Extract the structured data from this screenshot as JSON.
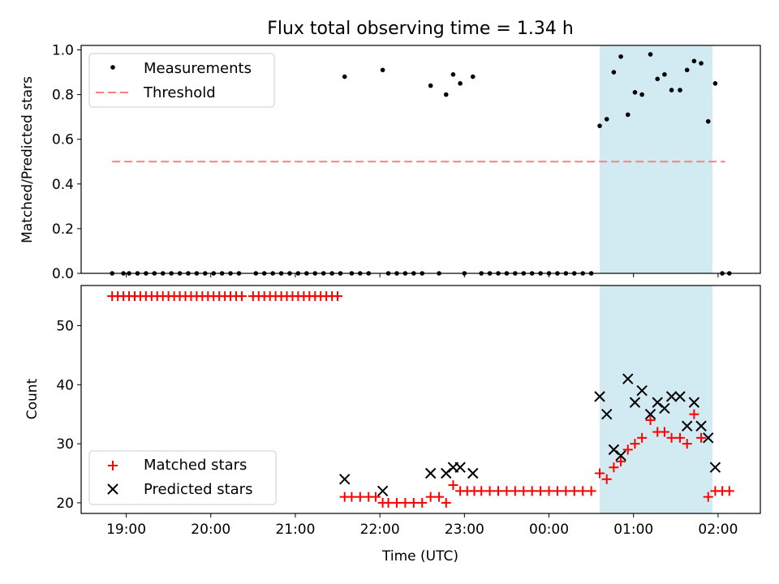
{
  "chart_data": {
    "title": "Flux total observing time = 1.34 h",
    "xlabel": "Time (UTC)",
    "x_ticks": [
      "19:00",
      "20:00",
      "21:00",
      "22:00",
      "23:00",
      "00:00",
      "01:00",
      "02:00"
    ],
    "highlight_span": {
      "start": "00:36",
      "end": "01:56",
      "color": "#add8e6"
    },
    "colors": {
      "measurements": "#000000",
      "threshold": "#ff7f7f",
      "matched": "#ff0000",
      "predicted": "#000000",
      "span": "#add8e6"
    },
    "panels": [
      {
        "type": "scatter",
        "ylabel": "Matched/Predicted stars",
        "ylim": [
          0,
          1.02
        ],
        "y_ticks": [
          0.0,
          0.2,
          0.4,
          0.6,
          0.8,
          1.0
        ],
        "legend": {
          "position": "top-left",
          "entries": [
            "Measurements",
            "Threshold"
          ]
        },
        "threshold": {
          "name": "Threshold",
          "value": 0.5,
          "x_start": "18:50",
          "x_end": "02:05"
        },
        "series": [
          {
            "name": "Measurements",
            "points": [
              [
                "18:50",
                0.0
              ],
              [
                "18:58",
                0.0
              ],
              [
                "19:02",
                0.0
              ],
              [
                "19:08",
                0.0
              ],
              [
                "19:14",
                0.0
              ],
              [
                "19:20",
                0.0
              ],
              [
                "19:26",
                0.0
              ],
              [
                "19:32",
                0.0
              ],
              [
                "19:38",
                0.0
              ],
              [
                "19:44",
                0.0
              ],
              [
                "19:50",
                0.0
              ],
              [
                "19:56",
                0.0
              ],
              [
                "20:02",
                0.0
              ],
              [
                "20:08",
                0.0
              ],
              [
                "20:14",
                0.0
              ],
              [
                "20:20",
                0.0
              ],
              [
                "20:32",
                0.0
              ],
              [
                "20:38",
                0.0
              ],
              [
                "20:44",
                0.0
              ],
              [
                "20:50",
                0.0
              ],
              [
                "20:56",
                0.0
              ],
              [
                "21:02",
                0.0
              ],
              [
                "21:08",
                0.0
              ],
              [
                "21:14",
                0.0
              ],
              [
                "21:20",
                0.0
              ],
              [
                "21:26",
                0.0
              ],
              [
                "21:32",
                0.0
              ],
              [
                "21:35",
                0.88
              ],
              [
                "21:40",
                0.0
              ],
              [
                "21:46",
                0.0
              ],
              [
                "21:52",
                0.0
              ],
              [
                "22:02",
                0.91
              ],
              [
                "22:06",
                0.0
              ],
              [
                "22:12",
                0.0
              ],
              [
                "22:18",
                0.0
              ],
              [
                "22:24",
                0.0
              ],
              [
                "22:30",
                0.0
              ],
              [
                "22:36",
                0.84
              ],
              [
                "22:42",
                0.0
              ],
              [
                "22:47",
                0.8
              ],
              [
                "22:52",
                0.89
              ],
              [
                "22:57",
                0.85
              ],
              [
                "23:00",
                0.0
              ],
              [
                "23:06",
                0.88
              ],
              [
                "23:12",
                0.0
              ],
              [
                "23:18",
                0.0
              ],
              [
                "23:24",
                0.0
              ],
              [
                "23:30",
                0.0
              ],
              [
                "23:36",
                0.0
              ],
              [
                "23:42",
                0.0
              ],
              [
                "23:48",
                0.0
              ],
              [
                "23:54",
                0.0
              ],
              [
                "00:00",
                0.0
              ],
              [
                "00:06",
                0.0
              ],
              [
                "00:12",
                0.0
              ],
              [
                "00:18",
                0.0
              ],
              [
                "00:24",
                0.0
              ],
              [
                "00:30",
                0.0
              ],
              [
                "00:36",
                0.66
              ],
              [
                "00:41",
                0.69
              ],
              [
                "00:46",
                0.9
              ],
              [
                "00:51",
                0.97
              ],
              [
                "00:56",
                0.71
              ],
              [
                "01:01",
                0.81
              ],
              [
                "01:06",
                0.8
              ],
              [
                "01:12",
                0.98
              ],
              [
                "01:17",
                0.87
              ],
              [
                "01:22",
                0.89
              ],
              [
                "01:27",
                0.82
              ],
              [
                "01:33",
                0.82
              ],
              [
                "01:38",
                0.91
              ],
              [
                "01:43",
                0.95
              ],
              [
                "01:48",
                0.94
              ],
              [
                "01:53",
                0.68
              ],
              [
                "01:58",
                0.85
              ],
              [
                "02:03",
                0.0
              ],
              [
                "02:08",
                0.0
              ]
            ]
          }
        ]
      },
      {
        "type": "scatter",
        "ylabel": "Count",
        "ylim": [
          18.2,
          56.8
        ],
        "y_ticks": [
          20,
          30,
          40,
          50
        ],
        "legend": {
          "position": "bottom-left",
          "entries": [
            "Matched stars",
            "Predicted stars"
          ]
        },
        "series": [
          {
            "name": "Matched stars",
            "marker": "+",
            "points": [
              [
                "18:50",
                55
              ],
              [
                "18:54",
                55
              ],
              [
                "18:58",
                55
              ],
              [
                "19:02",
                55
              ],
              [
                "19:06",
                55
              ],
              [
                "19:10",
                55
              ],
              [
                "19:14",
                55
              ],
              [
                "19:18",
                55
              ],
              [
                "19:22",
                55
              ],
              [
                "19:26",
                55
              ],
              [
                "19:30",
                55
              ],
              [
                "19:34",
                55
              ],
              [
                "19:38",
                55
              ],
              [
                "19:42",
                55
              ],
              [
                "19:46",
                55
              ],
              [
                "19:50",
                55
              ],
              [
                "19:54",
                55
              ],
              [
                "19:58",
                55
              ],
              [
                "20:02",
                55
              ],
              [
                "20:06",
                55
              ],
              [
                "20:10",
                55
              ],
              [
                "20:14",
                55
              ],
              [
                "20:18",
                55
              ],
              [
                "20:22",
                55
              ],
              [
                "20:30",
                55
              ],
              [
                "20:34",
                55
              ],
              [
                "20:38",
                55
              ],
              [
                "20:42",
                55
              ],
              [
                "20:46",
                55
              ],
              [
                "20:50",
                55
              ],
              [
                "20:54",
                55
              ],
              [
                "20:58",
                55
              ],
              [
                "21:02",
                55
              ],
              [
                "21:06",
                55
              ],
              [
                "21:10",
                55
              ],
              [
                "21:14",
                55
              ],
              [
                "21:18",
                55
              ],
              [
                "21:22",
                55
              ],
              [
                "21:26",
                55
              ],
              [
                "21:30",
                55
              ],
              [
                "21:35",
                21
              ],
              [
                "21:40",
                21
              ],
              [
                "21:46",
                21
              ],
              [
                "21:52",
                21
              ],
              [
                "21:57",
                21
              ],
              [
                "22:02",
                20
              ],
              [
                "22:06",
                20
              ],
              [
                "22:12",
                20
              ],
              [
                "22:18",
                20
              ],
              [
                "22:24",
                20
              ],
              [
                "22:30",
                20
              ],
              [
                "22:36",
                21
              ],
              [
                "22:42",
                21
              ],
              [
                "22:47",
                20
              ],
              [
                "22:52",
                23
              ],
              [
                "22:57",
                22
              ],
              [
                "23:02",
                22
              ],
              [
                "23:07",
                22
              ],
              [
                "23:12",
                22
              ],
              [
                "23:18",
                22
              ],
              [
                "23:24",
                22
              ],
              [
                "23:30",
                22
              ],
              [
                "23:36",
                22
              ],
              [
                "23:42",
                22
              ],
              [
                "23:48",
                22
              ],
              [
                "23:54",
                22
              ],
              [
                "00:00",
                22
              ],
              [
                "00:06",
                22
              ],
              [
                "00:12",
                22
              ],
              [
                "00:18",
                22
              ],
              [
                "00:24",
                22
              ],
              [
                "00:30",
                22
              ],
              [
                "00:36",
                25
              ],
              [
                "00:41",
                24
              ],
              [
                "00:46",
                26
              ],
              [
                "00:51",
                27
              ],
              [
                "00:56",
                29
              ],
              [
                "01:01",
                30
              ],
              [
                "01:06",
                31
              ],
              [
                "01:12",
                34
              ],
              [
                "01:17",
                32
              ],
              [
                "01:22",
                32
              ],
              [
                "01:27",
                31
              ],
              [
                "01:33",
                31
              ],
              [
                "01:38",
                30
              ],
              [
                "01:43",
                35
              ],
              [
                "01:48",
                31
              ],
              [
                "01:53",
                21
              ],
              [
                "01:58",
                22
              ],
              [
                "02:03",
                22
              ],
              [
                "02:08",
                22
              ]
            ]
          },
          {
            "name": "Predicted stars",
            "marker": "x",
            "points": [
              [
                "21:35",
                24
              ],
              [
                "22:02",
                22
              ],
              [
                "22:36",
                25
              ],
              [
                "22:47",
                25
              ],
              [
                "22:52",
                26
              ],
              [
                "22:57",
                26
              ],
              [
                "23:06",
                25
              ],
              [
                "00:36",
                38
              ],
              [
                "00:41",
                35
              ],
              [
                "00:46",
                29
              ],
              [
                "00:51",
                28
              ],
              [
                "00:56",
                41
              ],
              [
                "01:01",
                37
              ],
              [
                "01:06",
                39
              ],
              [
                "01:12",
                35
              ],
              [
                "01:17",
                37
              ],
              [
                "01:22",
                36
              ],
              [
                "01:27",
                38
              ],
              [
                "01:33",
                38
              ],
              [
                "01:38",
                33
              ],
              [
                "01:43",
                37
              ],
              [
                "01:48",
                33
              ],
              [
                "01:53",
                31
              ],
              [
                "01:58",
                26
              ]
            ]
          }
        ]
      }
    ]
  }
}
